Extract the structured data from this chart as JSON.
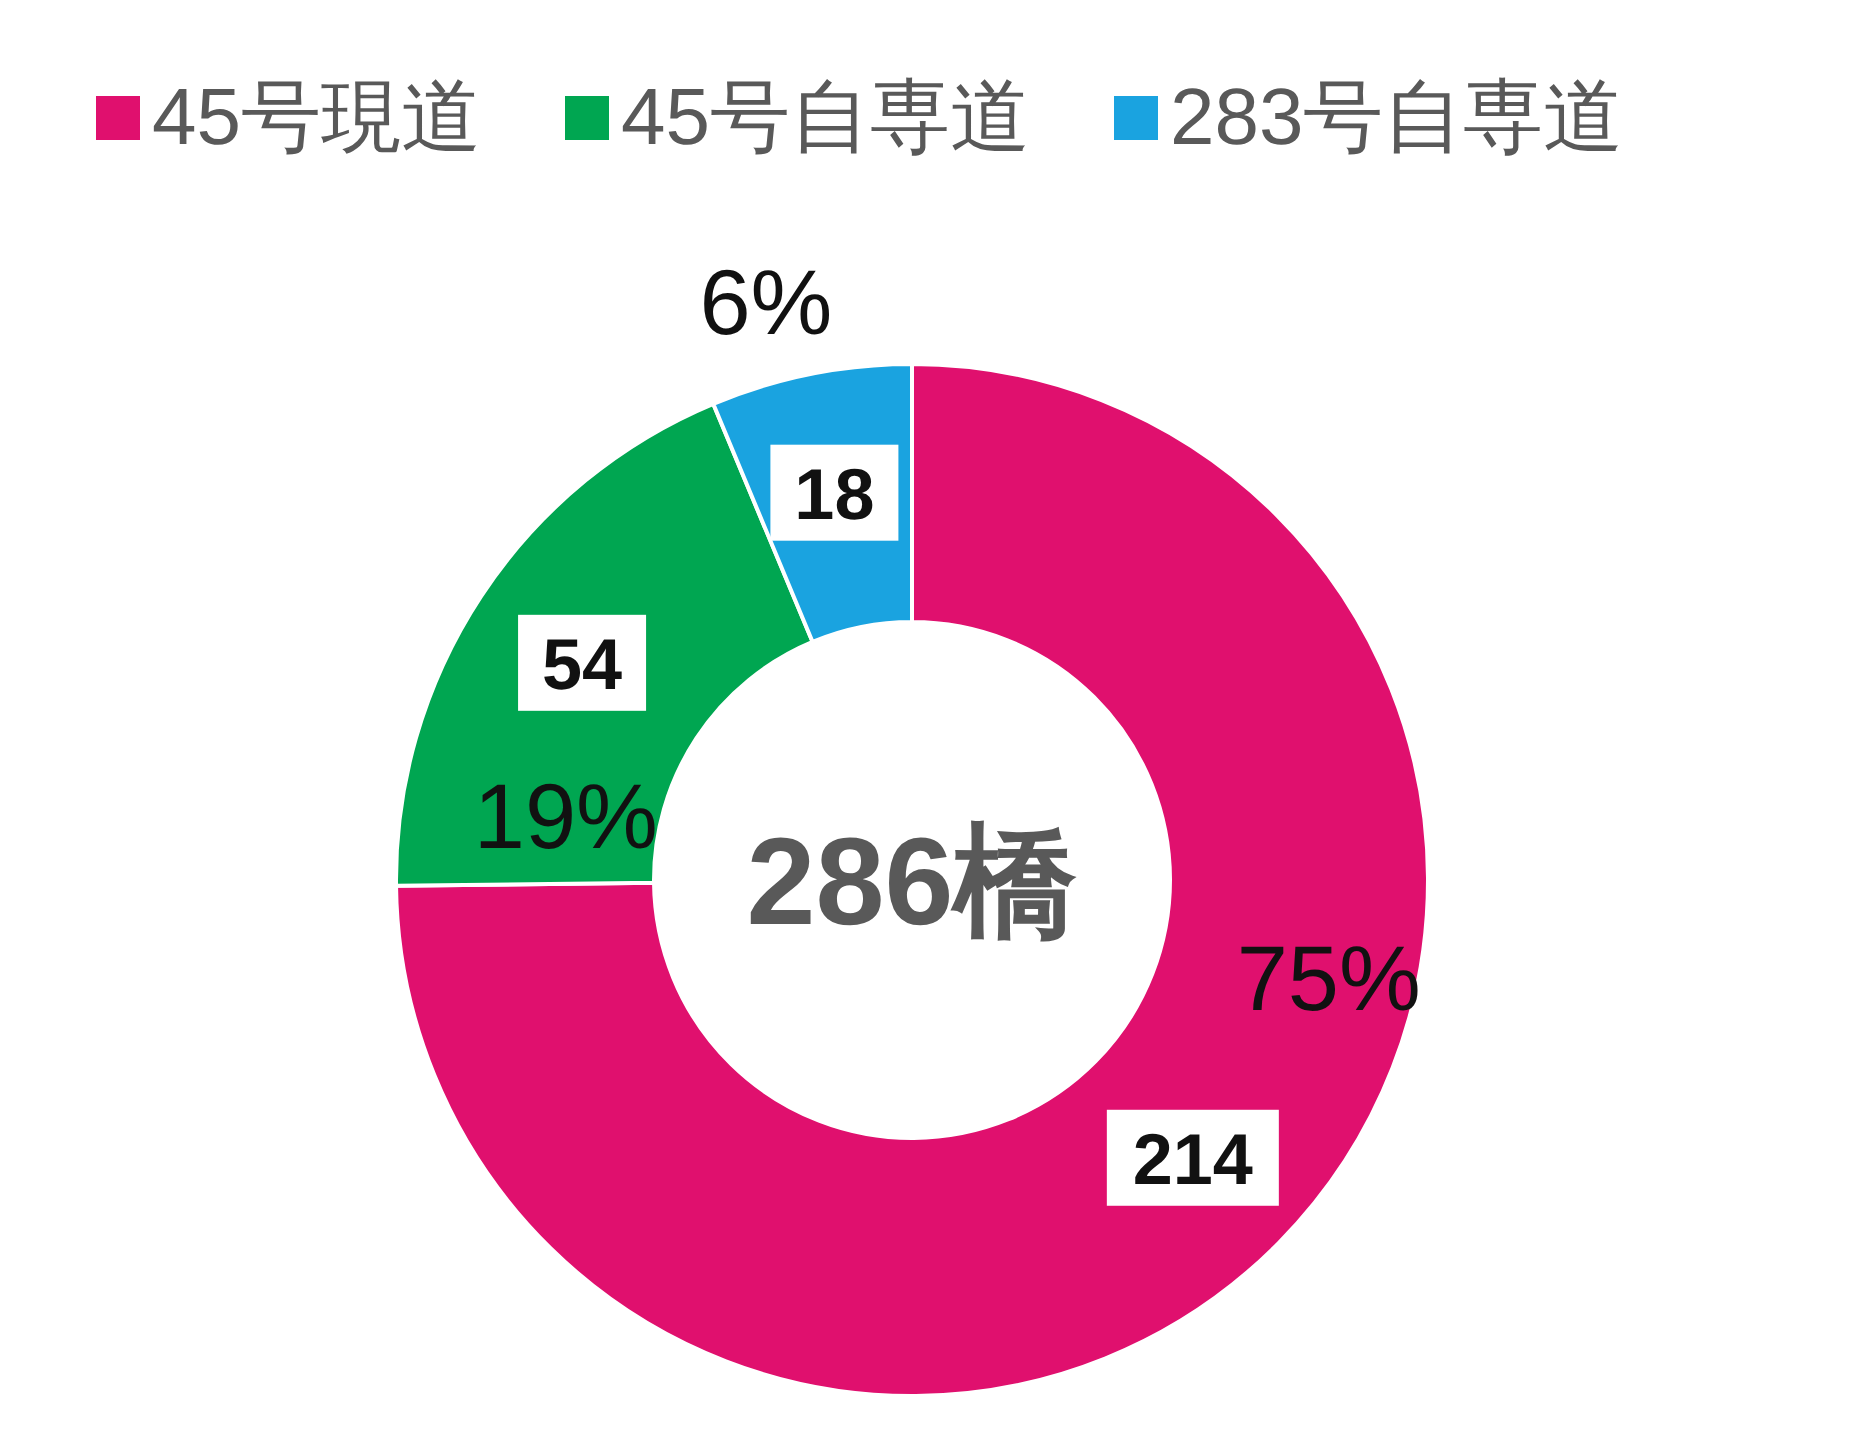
{
  "chart_data": {
    "type": "donut",
    "categories": [
      "45号現道",
      "45号自専道",
      "283号自専道"
    ],
    "values": [
      214,
      54,
      18
    ],
    "colors": [
      "#e0106e",
      "#00a651",
      "#1aa3e0"
    ],
    "data_labels": true,
    "legend": "top",
    "annotations": [
      "286橋",
      {
        "text": "75%",
        "x": "45号現道"
      },
      {
        "text": "19%",
        "x": "45号自専道"
      },
      {
        "text": "6%",
        "x": "283号自専道"
      }
    ]
  }
}
